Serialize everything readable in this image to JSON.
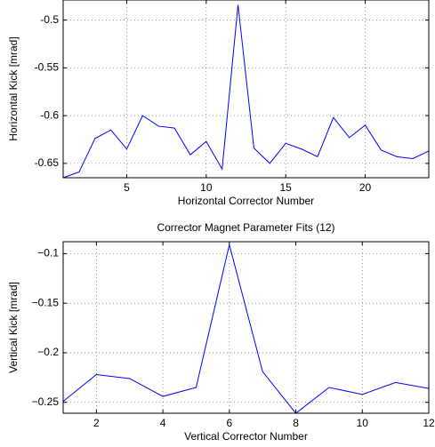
{
  "chart_data": [
    {
      "type": "line",
      "xlabel": "Horizontal Corrector Number",
      "ylabel": "Horizontal Kick [mrad]",
      "x": [
        1,
        2,
        3,
        4,
        5,
        6,
        7,
        8,
        9,
        10,
        11,
        12,
        13,
        14,
        15,
        16,
        17,
        18,
        19,
        20,
        21,
        22,
        23,
        24
      ],
      "series": [
        {
          "color": "#0000ff",
          "values": [
            -0.665,
            -0.659,
            -0.624,
            -0.615,
            -0.635,
            -0.6,
            -0.611,
            -0.613,
            -0.641,
            -0.627,
            -0.656,
            -0.484,
            -0.634,
            -0.65,
            -0.629,
            -0.635,
            -0.643,
            -0.602,
            -0.623,
            -0.61,
            -0.636,
            -0.643,
            -0.645,
            -0.637
          ]
        }
      ],
      "xlim": [
        1,
        24
      ],
      "xticks": [
        5,
        10,
        15,
        20
      ],
      "ylim": [
        -0.665,
        -0.479
      ],
      "yticks": [
        -0.65,
        -0.6,
        -0.55,
        -0.5
      ],
      "grid": true
    },
    {
      "type": "line",
      "title": "Corrector Magnet Parameter Fits (12)",
      "xlabel": "Vertical Corrector Number",
      "ylabel": "Vertical Kick [mrad]",
      "x": [
        1,
        2,
        3,
        4,
        5,
        6,
        7,
        8,
        9,
        10,
        11,
        12
      ],
      "series": [
        {
          "color": "#0000ff",
          "values": [
            -0.249,
            -0.222,
            -0.226,
            -0.244,
            -0.235,
            -0.091,
            -0.219,
            -0.261,
            -0.235,
            -0.242,
            -0.23,
            -0.236
          ]
        }
      ],
      "xlim": [
        1,
        12
      ],
      "xticks": [
        2,
        4,
        6,
        8,
        10,
        12
      ],
      "ylim": [
        -0.261,
        -0.088
      ],
      "yticks": [
        {
          "value": -0.25,
          "label": "−0.25"
        },
        {
          "value": -0.2,
          "label": "−0.2"
        },
        {
          "value": -0.15,
          "label": "−0.15"
        },
        {
          "value": -0.1,
          "label": "−0.1"
        }
      ],
      "grid": true
    }
  ]
}
